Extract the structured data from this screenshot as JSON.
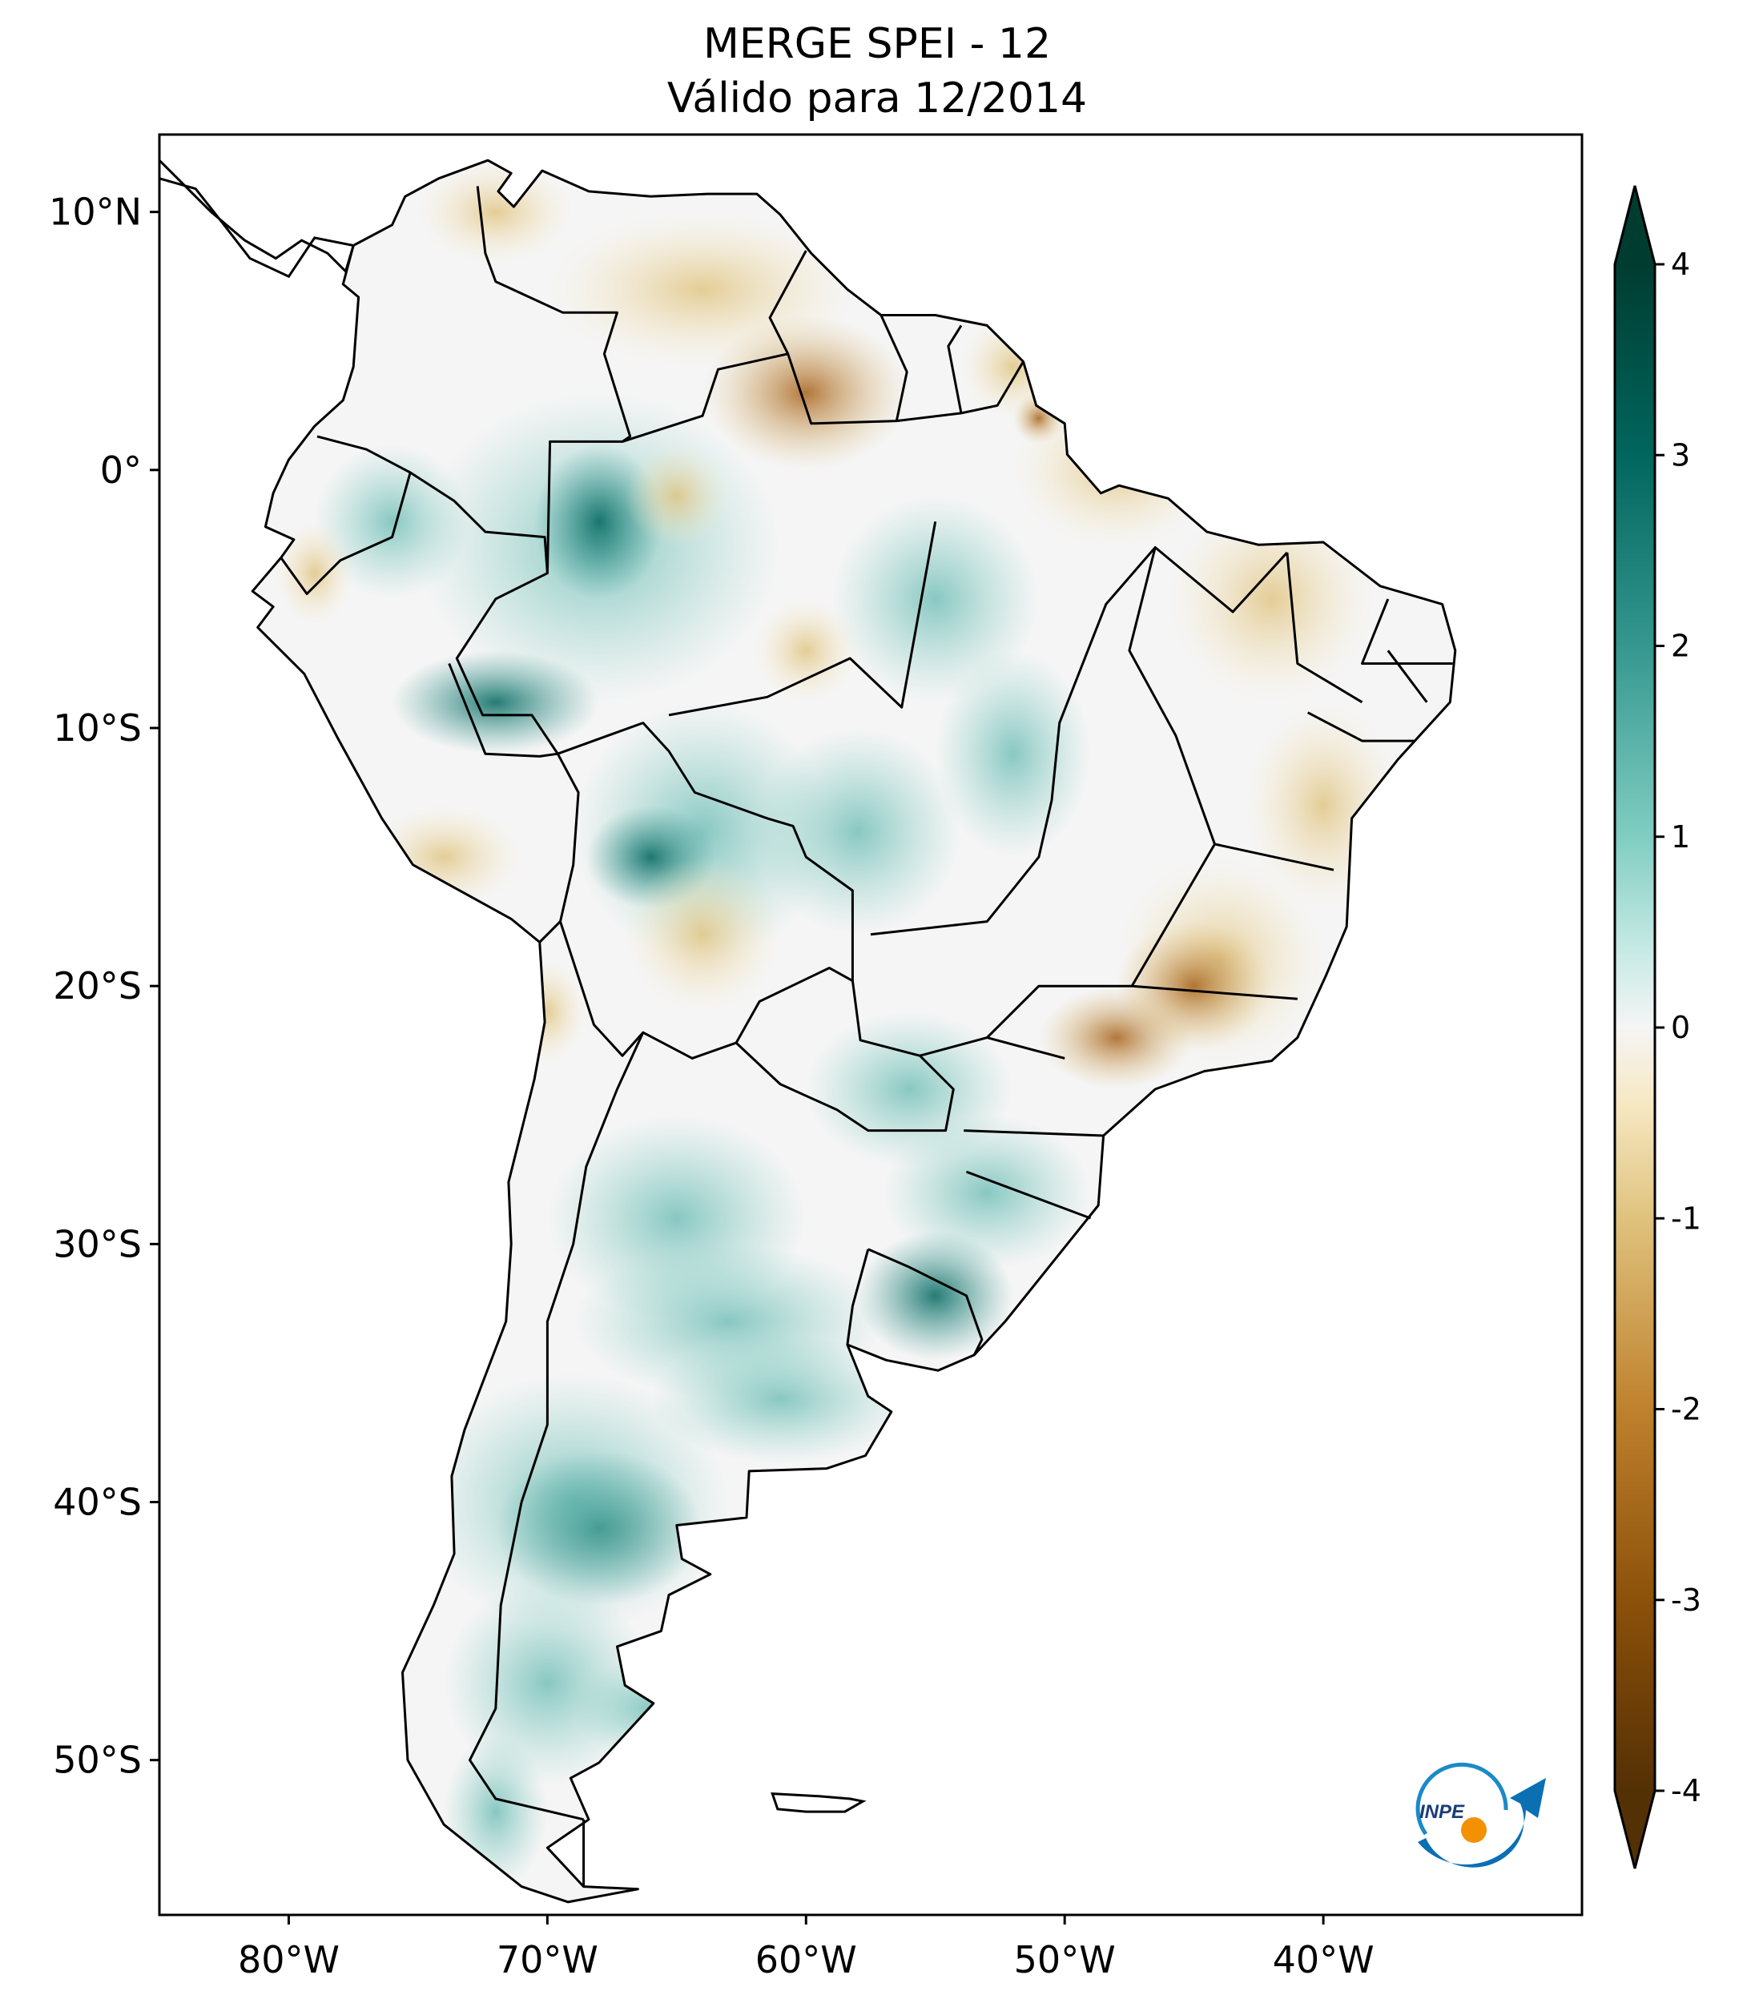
{
  "title": {
    "line1": "MERGE   SPEI - 12",
    "line2": "Válido para 12/2014"
  },
  "map": {
    "lat_ticks": [
      "10°N",
      "0°",
      "10°S",
      "20°S",
      "30°S",
      "40°S",
      "50°S"
    ],
    "lon_ticks": [
      "80°W",
      "70°W",
      "60°W",
      "50°W",
      "40°W"
    ],
    "lon_range": [
      -85,
      -30
    ],
    "lat_range": [
      -56,
      13
    ]
  },
  "colorbar": {
    "ticks": [
      "4",
      "3",
      "2",
      "1",
      "0",
      "-1",
      "-2",
      "-3",
      "-4"
    ],
    "range": [
      -4,
      4
    ],
    "extend": "both",
    "colormap": "BrBG",
    "colors": {
      "strong_wet": "#003c30",
      "wet": "#35978f",
      "light_wet": "#c7eae5",
      "neutral": "#f5f5f5",
      "light_dry": "#f6e8c3",
      "dry": "#bf812d",
      "strong_dry": "#543005"
    }
  },
  "logo": {
    "text": "INPE",
    "name": "inpe-logo"
  }
}
